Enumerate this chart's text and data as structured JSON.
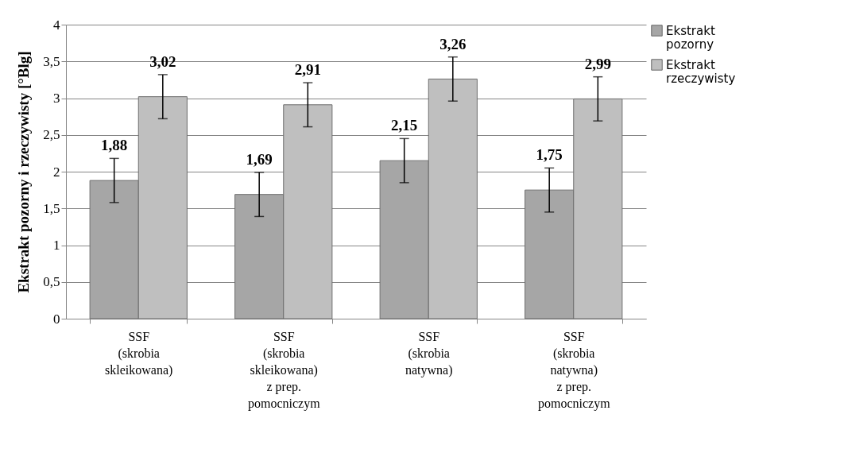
{
  "chart_data": {
    "type": "bar",
    "ylabel": "Ekstrakt pozorny i rzeczywisty [°Blg]",
    "categories": [
      "SSF (skrobia skleikowana)",
      "SSF (skrobia skleikowana) z prep. pomocniczym",
      "SSF (skrobia natywna)",
      "SSF (skrobia natywna) z prep. pomocniczym"
    ],
    "series": [
      {
        "name": "Ekstrakt pozorny",
        "color": "#a6a6a6",
        "values": [
          1.88,
          1.69,
          2.15,
          1.75
        ],
        "value_labels": [
          "1,88",
          "1,69",
          "2,15",
          "1,75"
        ],
        "errors": [
          0.3,
          0.3,
          0.3,
          0.3
        ]
      },
      {
        "name": "Ekstrakt rzeczywisty",
        "color": "#bfbfbf",
        "values": [
          3.02,
          2.91,
          3.26,
          2.99
        ],
        "value_labels": [
          "3,02",
          "2,91",
          "3,26",
          "2,99"
        ],
        "errors": [
          0.3,
          0.3,
          0.3,
          0.3
        ]
      }
    ],
    "ylim": [
      0,
      4
    ],
    "yticks": [
      {
        "value": 0,
        "label": "0"
      },
      {
        "value": 0.5,
        "label": "0,5"
      },
      {
        "value": 1,
        "label": "1"
      },
      {
        "value": 1.5,
        "label": "1,5"
      },
      {
        "value": 2,
        "label": "2"
      },
      {
        "value": 2.5,
        "label": "2,5"
      },
      {
        "value": 3,
        "label": "3"
      },
      {
        "value": 3.5,
        "label": "3,5"
      },
      {
        "value": 4,
        "label": "4"
      }
    ],
    "grid": "y",
    "legend": "right"
  }
}
